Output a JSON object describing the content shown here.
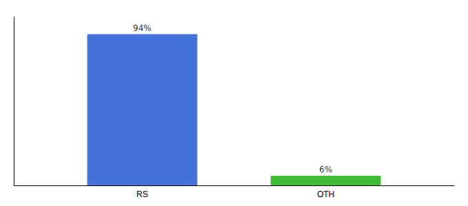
{
  "chart_data": {
    "type": "bar",
    "categories": [
      "RS",
      "OTH"
    ],
    "values": [
      94,
      6
    ],
    "value_labels": [
      "94%",
      "6%"
    ],
    "colors": [
      "#4472db",
      "#3dbb35"
    ],
    "ylim": [
      0,
      105
    ],
    "data_labels": true,
    "tick_labels": "x"
  }
}
